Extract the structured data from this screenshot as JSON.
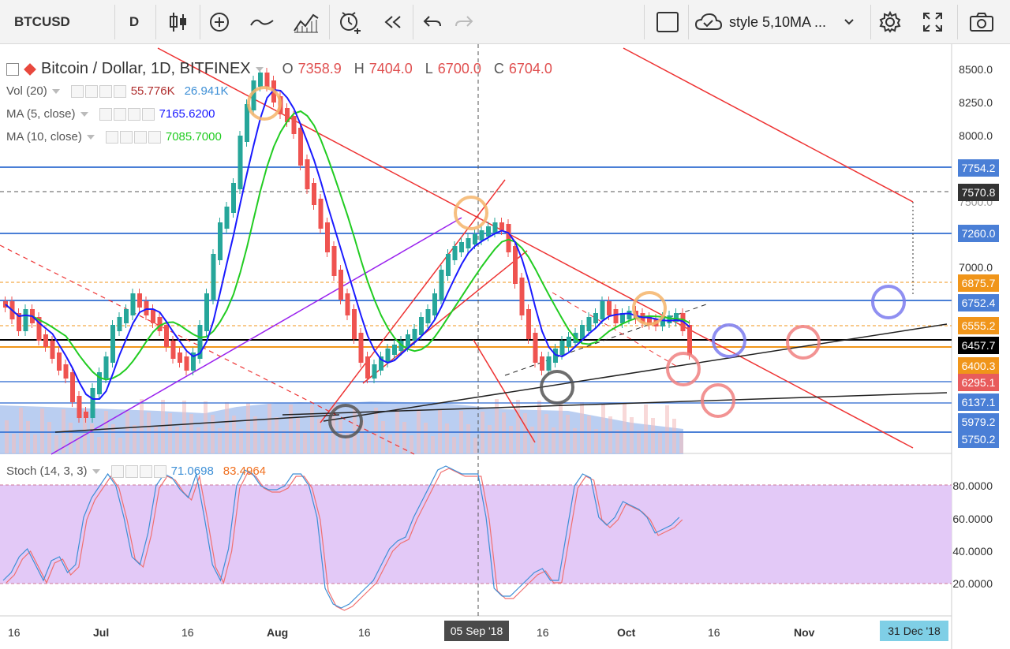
{
  "toolbar": {
    "symbol": "BTCUSD",
    "interval": "D",
    "style_template": "style 5,10MA ...",
    "icons": [
      "bar-type-icon",
      "indicators-icon",
      "compare-icon",
      "drawing-tools-icon",
      "alert-icon",
      "replay-icon",
      "undo-icon",
      "redo-icon",
      "fullscreen-checkbox-icon",
      "cloud-icon",
      "settings-icon",
      "fullscreen-icon",
      "camera-icon"
    ]
  },
  "legend": {
    "title": "Bitcoin / Dollar, 1D, BITFINEX",
    "o_label": "O",
    "o_value": "7358.9",
    "h_label": "H",
    "h_value": "7404.0",
    "l_label": "L",
    "l_value": "6700.0",
    "c_label": "C",
    "c_value": "6704.0",
    "vol_name": "Vol (20)",
    "vol_v1": "55.776K",
    "vol_v2": "26.941K",
    "ma5_name": "MA (5, close)",
    "ma5_value": "7165.6200",
    "ma10_name": "MA (10, close)",
    "ma10_value": "7085.7000",
    "stoch_name": "Stoch (14, 3, 3)",
    "stoch_k": "71.0698",
    "stoch_d": "83.4964"
  },
  "price_axis": {
    "ticks": [
      "8500.0",
      "8250.0",
      "8000.0",
      "7750.0",
      "7500.0",
      "7000.0"
    ],
    "tags": [
      {
        "value": "7754.2",
        "color": "#4a7fd6"
      },
      {
        "value": "7570.8",
        "color": "#333333"
      },
      {
        "value": "7260.0",
        "color": "#4a7fd6"
      },
      {
        "value": "6875.7",
        "color": "#f0951a"
      },
      {
        "value": "6752.4",
        "color": "#4a7fd6"
      },
      {
        "value": "6555.2",
        "color": "#f0951a"
      },
      {
        "value": "6457.7",
        "color": "#000000"
      },
      {
        "value": "6400.3",
        "color": "#f0951a"
      },
      {
        "value": "6295.1",
        "color": "#e85c5c"
      },
      {
        "value": "6137.1",
        "color": "#4a7fd6"
      },
      {
        "value": "5979.2",
        "color": "#4a7fd6"
      },
      {
        "value": "5750.2",
        "color": "#4a7fd6"
      }
    ],
    "stoch_ticks": [
      "80.0000",
      "60.0000",
      "40.0000",
      "20.0000"
    ]
  },
  "time_axis": {
    "labels": [
      "16",
      "Jul",
      "16",
      "Aug",
      "16",
      "16",
      "Oct",
      "16",
      "Nov"
    ],
    "crosshair_date": "05 Sep '18",
    "end_date": "31 Dec '18"
  },
  "colors": {
    "up": "#26a69a",
    "down": "#ef5350",
    "ma5": "#1a1aff",
    "ma10": "#22cc22",
    "stoch_k": "#3d8fd6",
    "stoch_d": "#f07070",
    "stoch_band": "#e3c9f7"
  }
}
